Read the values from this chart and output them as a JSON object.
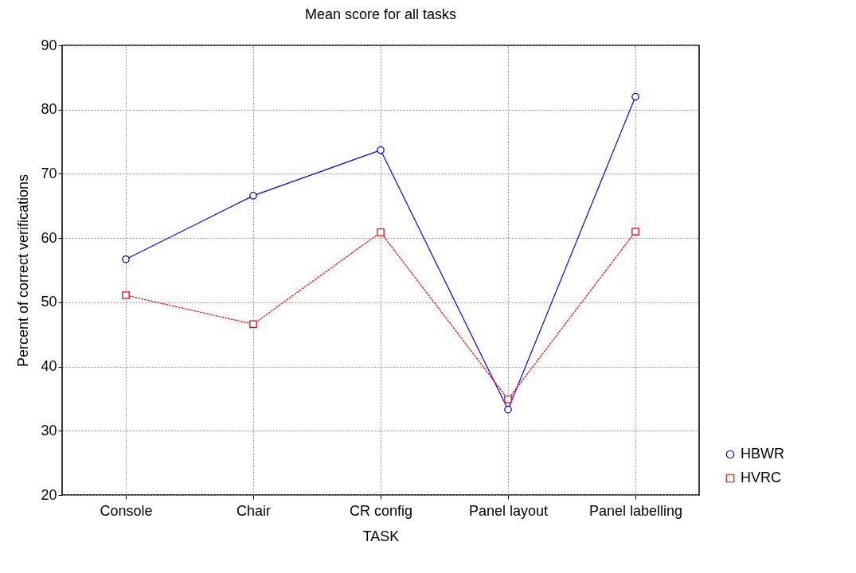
{
  "chart_data": {
    "type": "line",
    "title": "Mean score for all tasks",
    "xlabel": "TASK",
    "ylabel": "Percent of correct verifications",
    "categories": [
      "Console",
      "Chair",
      "CR config",
      "Panel layout",
      "Panel labelling"
    ],
    "series": [
      {
        "name": "HBWR",
        "color": "#0000ff",
        "marker": "circle",
        "line_style": "solid",
        "values": [
          56.7,
          66.6,
          73.7,
          33.3,
          82.0
        ]
      },
      {
        "name": "HVRC",
        "color": "#ff0000",
        "marker": "square",
        "line_style": "dotted",
        "values": [
          51.1,
          46.6,
          60.9,
          34.9,
          61.0
        ]
      }
    ],
    "ylim": [
      20,
      90
    ],
    "yticks": [
      20,
      30,
      40,
      50,
      60,
      70,
      80,
      90
    ],
    "grid": true,
    "legend": "bottom right"
  }
}
